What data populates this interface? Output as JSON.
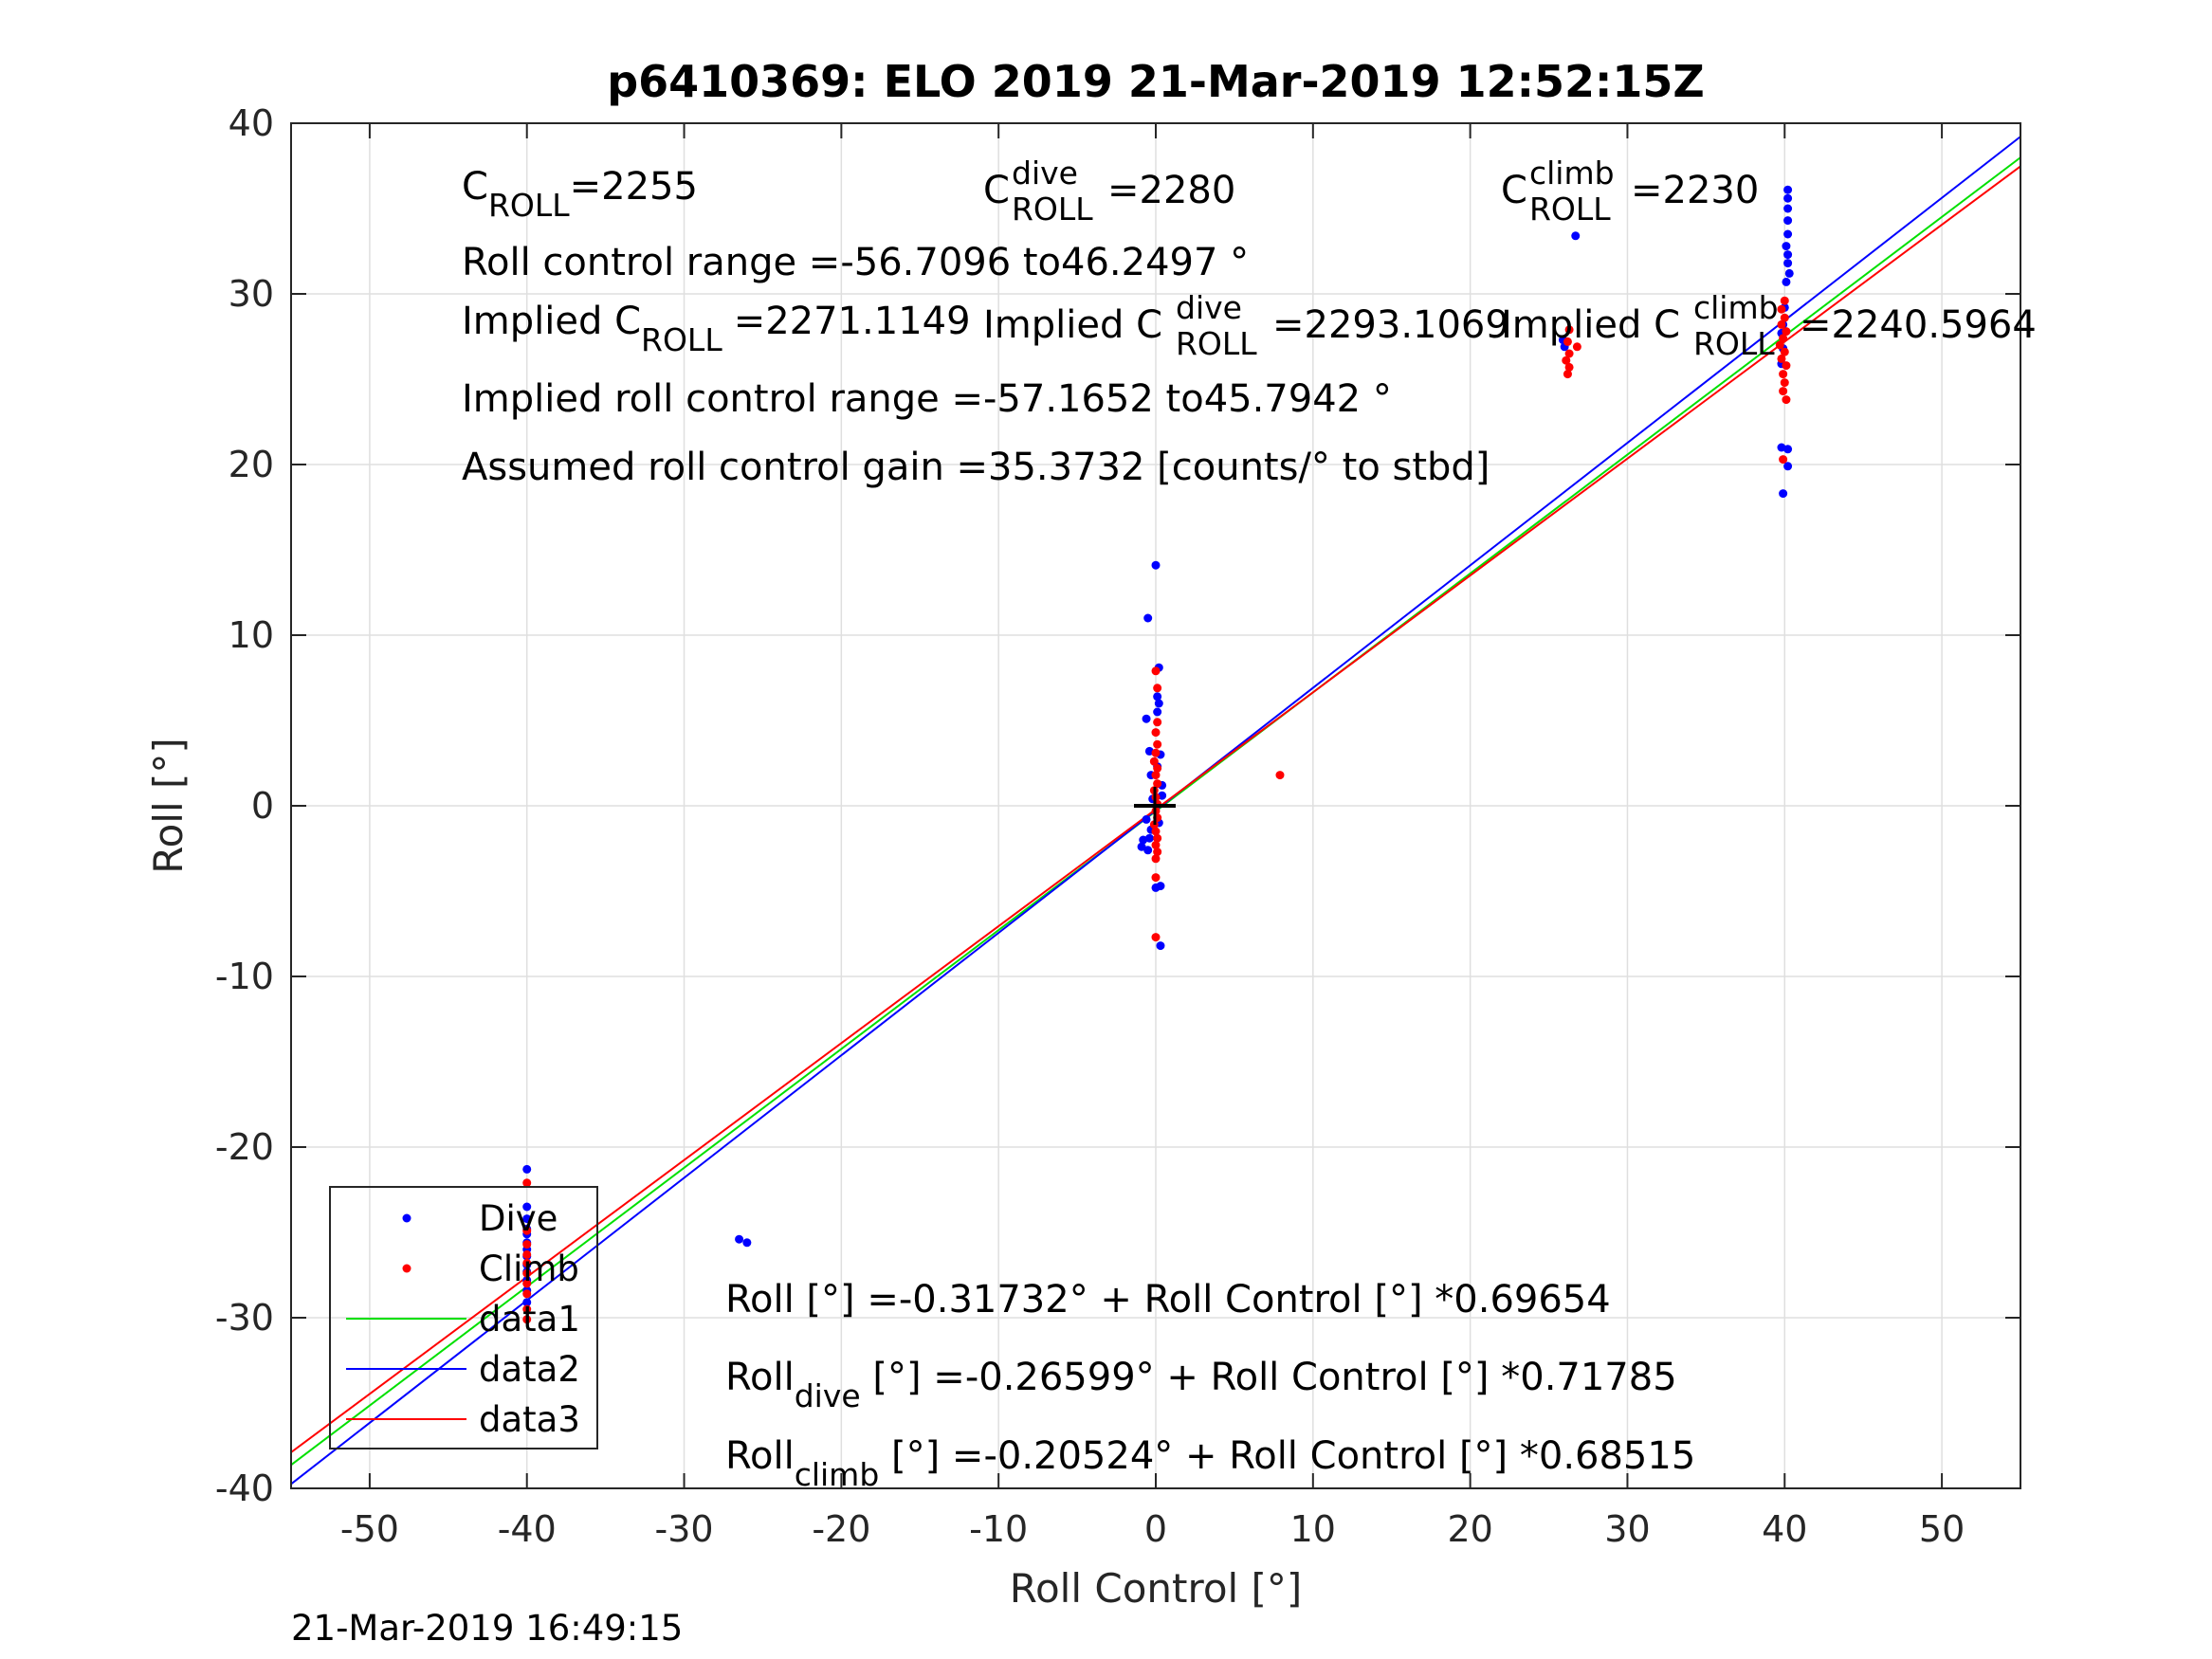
{
  "figure": {
    "title": "p6410369: ELO 2019 21-Mar-2019 12:52:15Z",
    "footer_timestamp": "21-Mar-2019 16:49:15"
  },
  "annotations": {
    "c_roll_base": "C",
    "c_roll_sub": "ROLL",
    "c_roll_value": "=2255",
    "c_dive_sup": "dive",
    "c_dive_value": "=2280",
    "c_climb_sup": "climb",
    "c_climb_value": "=2230",
    "roll_range": "Roll control range =-56.7096 to46.2497 °",
    "implied_prefix": "Implied C",
    "implied_value": "=2271.1149",
    "implied_dive_value": "=2293.1069",
    "implied_climb_value": "=2240.5964",
    "implied_range": "Implied roll control range =-57.1652 to45.7942 °",
    "gain": "Assumed roll control gain =35.3732 [counts/° to stbd]",
    "fit_all": "Roll [°] =-0.31732° + Roll Control [°] *0.69654",
    "fit_roll": "Roll",
    "fit_dive_sub": "dive",
    "fit_dive_rest": " [°] =-0.26599° + Roll Control [°] *0.71785",
    "fit_climb_sub": "climb",
    "fit_climb_rest": " [°] =-0.20524° + Roll Control [°] *0.68515"
  },
  "chart_data": {
    "type": "scatter",
    "title": "p6410369: ELO 2019 21-Mar-2019 12:52:15Z",
    "xlabel": "Roll Control [°]",
    "ylabel": "Roll [°]",
    "xlim": [
      -55,
      55
    ],
    "ylim": [
      -40,
      40
    ],
    "xticks": [
      -50,
      -40,
      -30,
      -20,
      -10,
      0,
      10,
      20,
      30,
      40,
      50
    ],
    "yticks": [
      -40,
      -30,
      -20,
      -10,
      0,
      10,
      20,
      30,
      40
    ],
    "grid": true,
    "legend_position": "bottom-left",
    "origin_marker": [
      0,
      0
    ],
    "series": [
      {
        "name": "Dive",
        "kind": "points",
        "color": "#0000ff",
        "points": [
          [
            -40,
            -21.3
          ],
          [
            -40,
            -23.5
          ],
          [
            -40,
            -24.2
          ],
          [
            -40,
            -25.1
          ],
          [
            -40,
            -25.6
          ],
          [
            -40,
            -26.0
          ],
          [
            -40,
            -26.4
          ],
          [
            -40,
            -26.9
          ],
          [
            -40,
            -27.3
          ],
          [
            -40,
            -27.8
          ],
          [
            -40,
            -28.4
          ],
          [
            -40,
            -29.1
          ],
          [
            -40,
            -24.8
          ],
          [
            -26.5,
            -25.4
          ],
          [
            -26,
            -25.6
          ],
          [
            -0.8,
            -2.0
          ],
          [
            -0.9,
            -2.4
          ],
          [
            -0.4,
            -1.9
          ],
          [
            -0.5,
            -2.6
          ],
          [
            -0.3,
            -1.4
          ],
          [
            -0.6,
            -0.8
          ],
          [
            0,
            14.1
          ],
          [
            -0.5,
            11.0
          ],
          [
            0.2,
            8.1
          ],
          [
            0.1,
            6.4
          ],
          [
            0.2,
            6.0
          ],
          [
            0.1,
            5.5
          ],
          [
            -0.6,
            5.1
          ],
          [
            -0.4,
            3.2
          ],
          [
            0.3,
            3.0
          ],
          [
            -0.3,
            1.8
          ],
          [
            0.1,
            2.3
          ],
          [
            0.4,
            1.2
          ],
          [
            0.2,
            -1.0
          ],
          [
            0,
            -4.8
          ],
          [
            0.3,
            -4.7
          ],
          [
            0.3,
            -8.2
          ],
          [
            0.4,
            0.6
          ],
          [
            -0.2,
            0.4
          ],
          [
            26.7,
            33.4
          ],
          [
            25.9,
            27.3
          ],
          [
            26.0,
            26.9
          ],
          [
            40.2,
            36.1
          ],
          [
            40.2,
            35.6
          ],
          [
            40.2,
            35.0
          ],
          [
            40.2,
            34.3
          ],
          [
            40.2,
            33.5
          ],
          [
            40.1,
            32.8
          ],
          [
            40.2,
            32.3
          ],
          [
            40.2,
            31.8
          ],
          [
            40.3,
            31.2
          ],
          [
            40.1,
            30.7
          ],
          [
            40.0,
            29.2
          ],
          [
            39.9,
            28.2
          ],
          [
            39.8,
            27.7
          ],
          [
            39.9,
            26.8
          ],
          [
            39.8,
            25.9
          ],
          [
            40.2,
            20.9
          ],
          [
            39.8,
            21.0
          ],
          [
            40.2,
            19.9
          ],
          [
            39.9,
            18.3
          ]
        ]
      },
      {
        "name": "Climb",
        "kind": "points",
        "color": "#ff0000",
        "points": [
          [
            -40,
            -22.1
          ],
          [
            -40,
            -24.9
          ],
          [
            -40,
            -25.7
          ],
          [
            -40,
            -26.3
          ],
          [
            -40,
            -26.8
          ],
          [
            -40,
            -27.4
          ],
          [
            -40,
            -28.0
          ],
          [
            -40,
            -28.6
          ],
          [
            -40,
            -29.5
          ],
          [
            -40,
            -30.1
          ],
          [
            0,
            7.9
          ],
          [
            0.1,
            6.9
          ],
          [
            0.1,
            4.9
          ],
          [
            0,
            4.3
          ],
          [
            0.1,
            3.6
          ],
          [
            0,
            3.1
          ],
          [
            -0.1,
            2.6
          ],
          [
            0.1,
            2.2
          ],
          [
            0,
            1.8
          ],
          [
            0.1,
            1.3
          ],
          [
            -0.1,
            0.9
          ],
          [
            0,
            0.5
          ],
          [
            0.1,
            0.1
          ],
          [
            0,
            -0.3
          ],
          [
            0.1,
            -0.7
          ],
          [
            -0.1,
            -1.1
          ],
          [
            0,
            -1.5
          ],
          [
            0.1,
            -1.9
          ],
          [
            0,
            -2.3
          ],
          [
            0.1,
            -2.7
          ],
          [
            0,
            -3.1
          ],
          [
            0,
            -4.2
          ],
          [
            0,
            -7.7
          ],
          [
            7.9,
            1.8
          ],
          [
            26.3,
            27.9
          ],
          [
            26.2,
            27.2
          ],
          [
            26.8,
            26.9
          ],
          [
            26.3,
            26.5
          ],
          [
            26.1,
            26.1
          ],
          [
            26.3,
            25.7
          ],
          [
            26.2,
            25.3
          ],
          [
            40.0,
            29.6
          ],
          [
            39.8,
            29.1
          ],
          [
            40.0,
            28.6
          ],
          [
            39.8,
            28.2
          ],
          [
            40.1,
            27.8
          ],
          [
            39.9,
            27.4
          ],
          [
            39.7,
            27.0
          ],
          [
            40.0,
            26.6
          ],
          [
            39.8,
            26.2
          ],
          [
            40.1,
            25.8
          ],
          [
            39.9,
            25.3
          ],
          [
            40.0,
            24.8
          ],
          [
            39.9,
            24.3
          ],
          [
            40.1,
            23.8
          ],
          [
            39.9,
            20.3
          ]
        ]
      },
      {
        "name": "data1",
        "kind": "line",
        "color": "#00e000",
        "intercept": -0.31732,
        "slope": 0.69654
      },
      {
        "name": "data2",
        "kind": "line",
        "color": "#0000ff",
        "intercept": -0.26599,
        "slope": 0.71785
      },
      {
        "name": "data3",
        "kind": "line",
        "color": "#ff0000",
        "intercept": -0.20524,
        "slope": 0.68515
      }
    ]
  }
}
